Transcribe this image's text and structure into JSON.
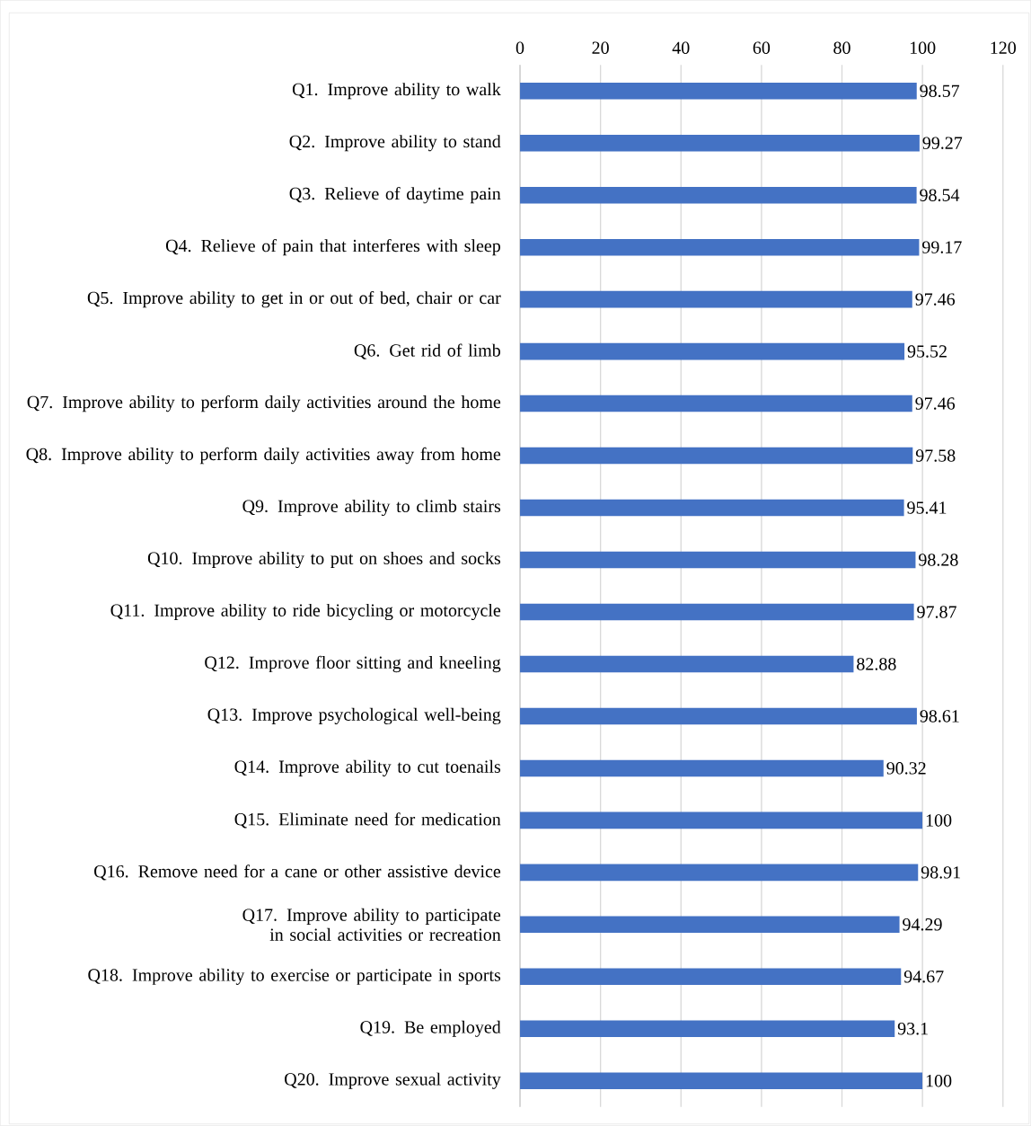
{
  "chart_data": {
    "type": "bar",
    "orientation": "horizontal",
    "categories": [
      "Q1. Improve ability to walk",
      "Q2. Improve ability to stand",
      "Q3. Relieve of daytime pain",
      "Q4. Relieve of pain that interferes with sleep",
      "Q5. Improve ability to get in or out of bed, chair or car",
      "Q6. Get rid of limb",
      "Q7. Improve ability to perform daily activities around the home",
      "Q8. Improve ability to perform daily activities away from home",
      "Q9. Improve ability to climb stairs",
      "Q10. Improve ability to put on shoes and socks",
      "Q11. Improve ability to ride bicycling or motorcycle",
      "Q12. Improve floor sitting and kneeling",
      "Q13. Improve psychological well-being",
      "Q14. Improve ability to cut toenails",
      "Q15. Eliminate need for medication",
      "Q16. Remove need for a cane or other assistive device",
      "Q17. Improve ability to participate in social activities or recreation",
      "Q18. Improve ability to exercise or participate in sports",
      "Q19. Be employed",
      "Q20. Improve sexual activity"
    ],
    "values": [
      98.57,
      99.27,
      98.54,
      99.17,
      97.46,
      95.52,
      97.46,
      97.58,
      95.41,
      98.28,
      97.87,
      82.88,
      98.61,
      90.32,
      100,
      98.91,
      94.29,
      94.67,
      93.1,
      100
    ],
    "color": "#4472c4",
    "xlim": [
      0,
      120
    ],
    "xticks": [
      0,
      20,
      40,
      60,
      80,
      100,
      120
    ],
    "grid": "x",
    "data_labels": true
  }
}
